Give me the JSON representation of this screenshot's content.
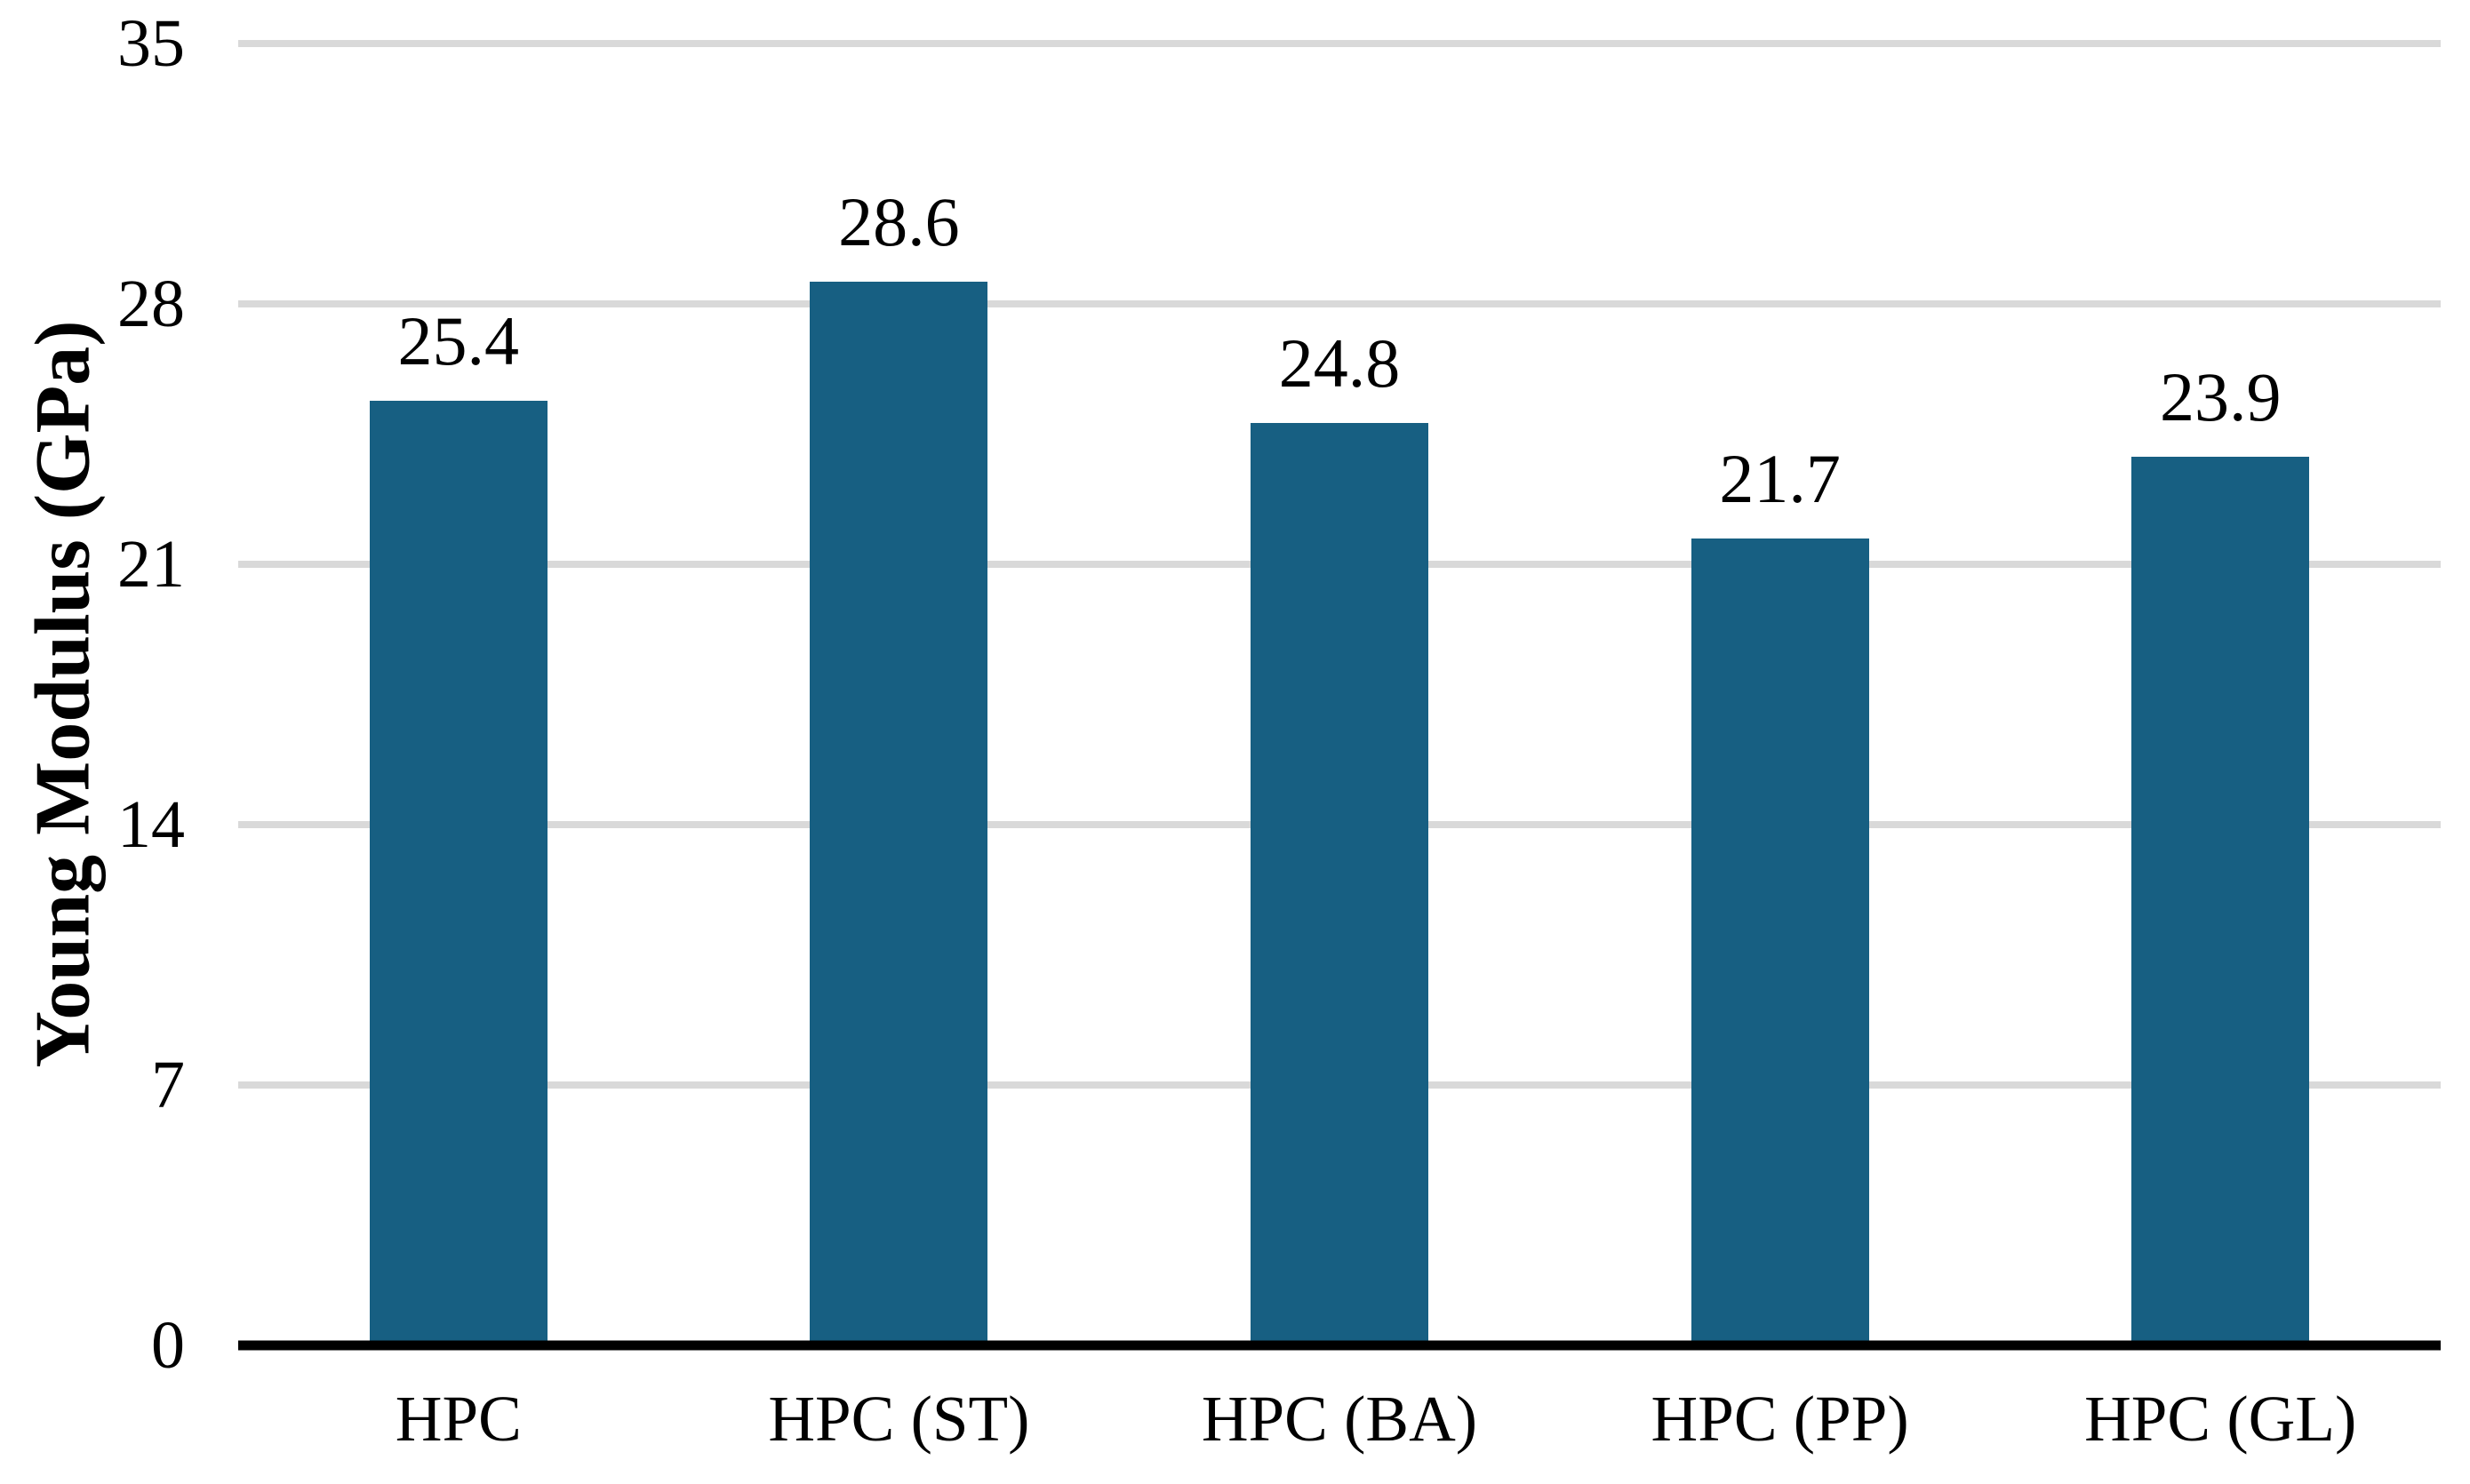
{
  "chart_data": {
    "type": "bar",
    "title": "",
    "xlabel": "",
    "ylabel": "Young Modulus (GPa)",
    "categories": [
      "HPC",
      "HPC (ST)",
      "HPC (BA)",
      "HPC (PP)",
      "HPC (GL)"
    ],
    "values": [
      25.4,
      28.6,
      24.8,
      21.7,
      23.9
    ],
    "value_labels": [
      "25.4",
      "28.6",
      "24.8",
      "21.7",
      "23.9"
    ],
    "ylim": [
      0,
      35
    ],
    "yticks": [
      0,
      7,
      14,
      21,
      28,
      35
    ],
    "grid": "horizontal-on",
    "legend": "none",
    "colors": {
      "bar": "#175F82",
      "gridline": "#D9D9D9",
      "axis_line": "#000000",
      "text": "#000000",
      "background": "#FFFFFF"
    }
  }
}
